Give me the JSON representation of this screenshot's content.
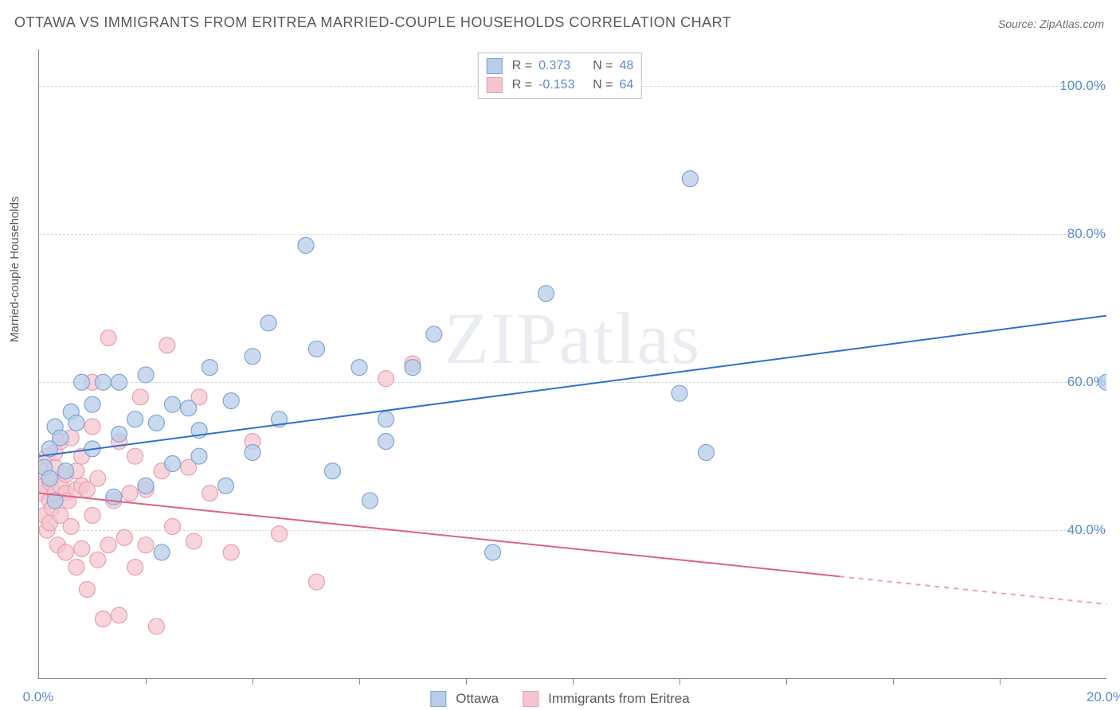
{
  "title": "OTTAWA VS IMMIGRANTS FROM ERITREA MARRIED-COUPLE HOUSEHOLDS CORRELATION CHART",
  "source": "Source: ZipAtlas.com",
  "ylabel": "Married-couple Households",
  "watermark": "ZIPatlas",
  "chart": {
    "type": "scatter",
    "xlim": [
      0,
      20
    ],
    "ylim": [
      20,
      105
    ],
    "grid_y": [
      40,
      60,
      80,
      100
    ],
    "grid_color": "#d7d7d7",
    "x_ticks_minor": [
      2,
      4,
      6,
      8,
      10,
      12,
      14,
      16,
      18
    ],
    "x_labels": [
      {
        "v": 0,
        "t": "0.0%"
      },
      {
        "v": 20,
        "t": "20.0%"
      }
    ],
    "y_labels": [
      {
        "v": 40,
        "t": "40.0%"
      },
      {
        "v": 60,
        "t": "60.0%"
      },
      {
        "v": 80,
        "t": "80.0%"
      },
      {
        "v": 100,
        "t": "100.0%"
      }
    ],
    "marker_radius": 10,
    "line_width": 2
  },
  "series": {
    "ottawa": {
      "label": "Ottawa",
      "fill": "#b7cdea",
      "stroke": "#7ea4d8",
      "line_color": "#2f6fd0",
      "R": "0.373",
      "N": "48",
      "trend": {
        "x1": 0,
        "y1": 50,
        "x2": 20,
        "y2": 69,
        "dashed_from": null
      },
      "points": [
        [
          0.1,
          48.5
        ],
        [
          0.2,
          47.0
        ],
        [
          0.2,
          51.0
        ],
        [
          0.3,
          44.0
        ],
        [
          0.3,
          54.0
        ],
        [
          0.4,
          52.5
        ],
        [
          0.5,
          48.0
        ],
        [
          0.6,
          56.0
        ],
        [
          0.7,
          54.5
        ],
        [
          0.8,
          60.0
        ],
        [
          1.0,
          51.0
        ],
        [
          1.0,
          57.0
        ],
        [
          1.2,
          60.0
        ],
        [
          1.4,
          44.5
        ],
        [
          1.5,
          53.0
        ],
        [
          1.5,
          60.0
        ],
        [
          1.8,
          55.0
        ],
        [
          2.0,
          46.0
        ],
        [
          2.0,
          61.0
        ],
        [
          2.2,
          54.5
        ],
        [
          2.3,
          37.0
        ],
        [
          2.5,
          57.0
        ],
        [
          2.5,
          49.0
        ],
        [
          2.8,
          56.5
        ],
        [
          3.0,
          53.5
        ],
        [
          3.0,
          50.0
        ],
        [
          3.2,
          62.0
        ],
        [
          3.5,
          46.0
        ],
        [
          3.6,
          57.5
        ],
        [
          4.0,
          63.5
        ],
        [
          4.0,
          50.5
        ],
        [
          4.3,
          68.0
        ],
        [
          4.5,
          55.0
        ],
        [
          5.0,
          78.5
        ],
        [
          5.2,
          64.5
        ],
        [
          5.5,
          48.0
        ],
        [
          6.0,
          62.0
        ],
        [
          6.2,
          44.0
        ],
        [
          6.5,
          55.0
        ],
        [
          6.5,
          52.0
        ],
        [
          7.0,
          62.0
        ],
        [
          7.4,
          66.5
        ],
        [
          8.5,
          37.0
        ],
        [
          9.5,
          72.0
        ],
        [
          12.0,
          58.5
        ],
        [
          12.2,
          87.5
        ],
        [
          12.5,
          50.5
        ],
        [
          20.0,
          60.0
        ]
      ]
    },
    "eritrea": {
      "label": "Immigrants from Eritrea",
      "fill": "#f6c5cf",
      "stroke": "#ea9fb0",
      "line_color": "#e06284",
      "R": "-0.153",
      "N": "64",
      "trend": {
        "x1": 0,
        "y1": 45,
        "x2": 20,
        "y2": 30,
        "dashed_from": 15
      },
      "points": [
        [
          0.0,
          45.0
        ],
        [
          0.1,
          46.0
        ],
        [
          0.1,
          48.0
        ],
        [
          0.1,
          42.0
        ],
        [
          0.15,
          50.0
        ],
        [
          0.15,
          40.0
        ],
        [
          0.2,
          44.0
        ],
        [
          0.2,
          46.5
        ],
        [
          0.2,
          41.0
        ],
        [
          0.25,
          47.0
        ],
        [
          0.25,
          43.0
        ],
        [
          0.3,
          48.5
        ],
        [
          0.3,
          45.0
        ],
        [
          0.3,
          50.5
        ],
        [
          0.35,
          38.0
        ],
        [
          0.4,
          46.0
        ],
        [
          0.4,
          52.0
        ],
        [
          0.4,
          42.0
        ],
        [
          0.5,
          45.0
        ],
        [
          0.5,
          47.5
        ],
        [
          0.5,
          37.0
        ],
        [
          0.55,
          44.0
        ],
        [
          0.6,
          40.5
        ],
        [
          0.6,
          52.5
        ],
        [
          0.7,
          45.5
        ],
        [
          0.7,
          48.0
        ],
        [
          0.7,
          35.0
        ],
        [
          0.8,
          46.0
        ],
        [
          0.8,
          50.0
        ],
        [
          0.8,
          37.5
        ],
        [
          0.9,
          45.5
        ],
        [
          0.9,
          32.0
        ],
        [
          1.0,
          54.0
        ],
        [
          1.0,
          60.0
        ],
        [
          1.0,
          42.0
        ],
        [
          1.1,
          36.0
        ],
        [
          1.1,
          47.0
        ],
        [
          1.2,
          28.0
        ],
        [
          1.3,
          66.0
        ],
        [
          1.3,
          38.0
        ],
        [
          1.4,
          44.0
        ],
        [
          1.5,
          28.5
        ],
        [
          1.5,
          52.0
        ],
        [
          1.6,
          39.0
        ],
        [
          1.7,
          45.0
        ],
        [
          1.8,
          50.0
        ],
        [
          1.8,
          35.0
        ],
        [
          1.9,
          58.0
        ],
        [
          2.0,
          45.5
        ],
        [
          2.0,
          38.0
        ],
        [
          2.2,
          27.0
        ],
        [
          2.3,
          48.0
        ],
        [
          2.4,
          65.0
        ],
        [
          2.5,
          40.5
        ],
        [
          2.8,
          48.5
        ],
        [
          2.9,
          38.5
        ],
        [
          3.0,
          58.0
        ],
        [
          3.2,
          45.0
        ],
        [
          3.6,
          37.0
        ],
        [
          4.0,
          52.0
        ],
        [
          4.5,
          39.5
        ],
        [
          5.2,
          33.0
        ],
        [
          6.5,
          60.5
        ],
        [
          7.0,
          62.5
        ]
      ]
    }
  },
  "legend_stats": {
    "r_label": "R =",
    "n_label": "N ="
  },
  "colors": {
    "axis": "#888888",
    "text": "#555a60",
    "value": "#5b8bd4"
  }
}
